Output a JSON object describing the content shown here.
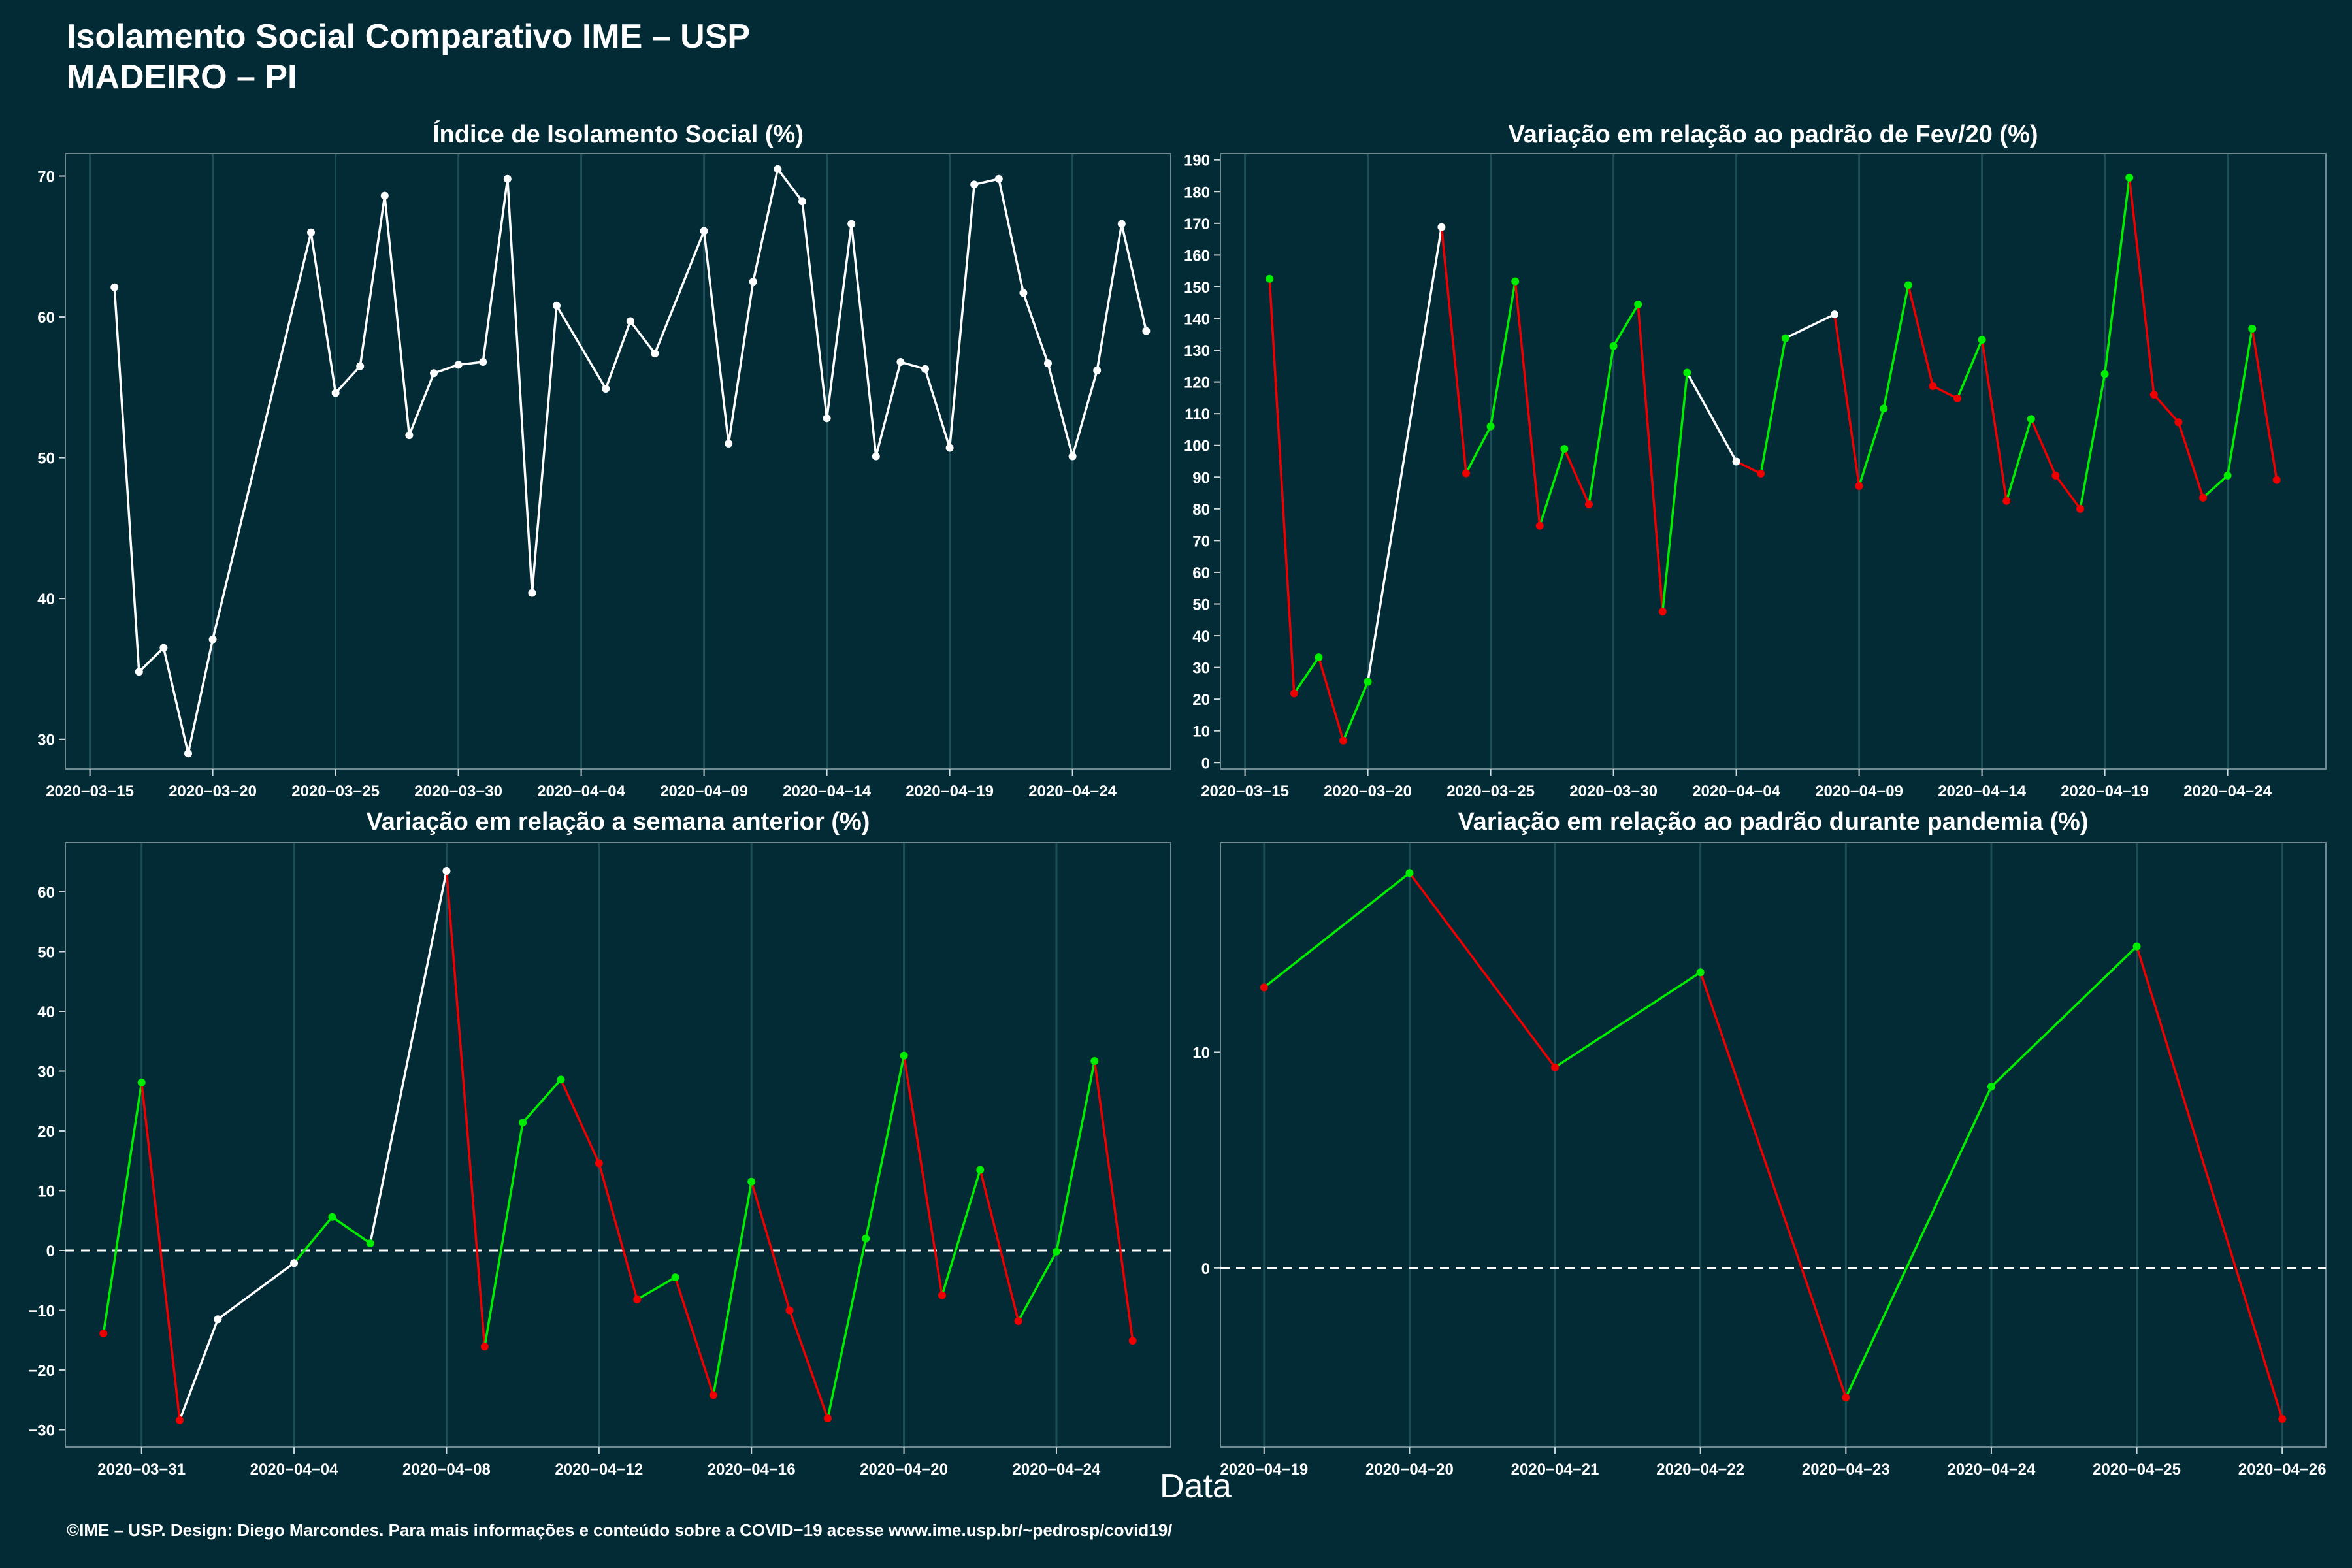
{
  "page": {
    "title_line1": "Isolamento Social Comparativo IME – USP",
    "title_line2": "MADEIRO – PI",
    "xlabel": "Data",
    "footer": "©IME – USP. Design: Diego Marcondes. Para mais informações e conteúdo sobre a COVID−19 acesse www.ime.usp.br/~pedrosp/covid19/"
  },
  "colors": {
    "background": "#022b36",
    "up": "#00ee00",
    "down": "#ee0000",
    "neutral": "#ffffff",
    "grid": "#1d4e57"
  },
  "chart_data": [
    {
      "type": "line",
      "title": "Índice de Isolamento Social (%)",
      "x": [
        "2020-03-16",
        "2020-03-17",
        "2020-03-18",
        "2020-03-19",
        "2020-03-20",
        "2020-03-24",
        "2020-03-25",
        "2020-03-26",
        "2020-03-27",
        "2020-03-28",
        "2020-03-29",
        "2020-03-30",
        "2020-03-31",
        "2020-04-01",
        "2020-04-02",
        "2020-04-03",
        "2020-04-05",
        "2020-04-06",
        "2020-04-07",
        "2020-04-09",
        "2020-04-10",
        "2020-04-11",
        "2020-04-12",
        "2020-04-13",
        "2020-04-14",
        "2020-04-15",
        "2020-04-16",
        "2020-04-17",
        "2020-04-18",
        "2020-04-19",
        "2020-04-20",
        "2020-04-21",
        "2020-04-22",
        "2020-04-23",
        "2020-04-24",
        "2020-04-25",
        "2020-04-26",
        "2020-04-27"
      ],
      "values": [
        62.1,
        34.8,
        36.5,
        29.0,
        37.1,
        66.0,
        54.6,
        56.5,
        68.6,
        51.6,
        56.0,
        56.6,
        56.8,
        69.8,
        40.4,
        60.8,
        54.9,
        59.7,
        57.4,
        66.1,
        51.0,
        62.5,
        70.5,
        68.2,
        52.8,
        66.6,
        50.1,
        56.8,
        56.3,
        50.7,
        69.4,
        69.8,
        61.7,
        56.7,
        50.1,
        56.2,
        66.6,
        59.0
      ],
      "yticks": [
        30,
        40,
        50,
        60,
        70
      ],
      "ylim": [
        27.9,
        71.6
      ],
      "xticks": [
        "2020−03−15",
        "2020−03−20",
        "2020−03−25",
        "2020−03−30",
        "2020−04−04",
        "2020−04−09",
        "2020−04−14",
        "2020−04−19",
        "2020−04−24"
      ],
      "xlim": [
        "2020-03-14",
        "2020-04-28"
      ],
      "segment_colors": [
        "neutral"
      ]
    },
    {
      "type": "line",
      "title": "Variação em relação ao padrão de Fev/20 (%)",
      "x": [
        "2020-03-16",
        "2020-03-17",
        "2020-03-18",
        "2020-03-19",
        "2020-03-20",
        "2020-03-23",
        "2020-03-24",
        "2020-03-25",
        "2020-03-26",
        "2020-03-27",
        "2020-03-28",
        "2020-03-29",
        "2020-03-30",
        "2020-03-31",
        "2020-04-01",
        "2020-04-02",
        "2020-04-04",
        "2020-04-05",
        "2020-04-06",
        "2020-04-08",
        "2020-04-09",
        "2020-04-10",
        "2020-04-11",
        "2020-04-12",
        "2020-04-13",
        "2020-04-14",
        "2020-04-15",
        "2020-04-16",
        "2020-04-17",
        "2020-04-18",
        "2020-04-19",
        "2020-04-20",
        "2020-04-21",
        "2020-04-22",
        "2020-04-23",
        "2020-04-24",
        "2020-04-25",
        "2020-04-26"
      ],
      "values": [
        152.5,
        21.8,
        33.2,
        6.9,
        25.5,
        168.8,
        91.2,
        106.0,
        151.7,
        74.7,
        98.9,
        81.4,
        131.3,
        144.4,
        47.6,
        122.9,
        94.9,
        91.1,
        133.8,
        141.3,
        87.2,
        111.6,
        150.5,
        118.7,
        114.8,
        133.3,
        82.5,
        108.3,
        90.5,
        80.0,
        122.5,
        184.4,
        116.0,
        107.3,
        83.5,
        90.5,
        136.8,
        89.1
      ],
      "yticks": [
        0,
        10,
        20,
        30,
        40,
        50,
        60,
        70,
        80,
        90,
        100,
        110,
        120,
        130,
        140,
        150,
        160,
        170,
        180,
        190
      ],
      "ylim": [
        -2,
        192
      ],
      "xticks": [
        "2020−03−15",
        "2020−03−20",
        "2020−03−25",
        "2020−03−30",
        "2020−04−04",
        "2020−04−09",
        "2020−04−14",
        "2020−04−19",
        "2020−04−24"
      ],
      "xlim": [
        "2020-03-14",
        "2020-04-28"
      ],
      "segment_colors": [
        "down",
        "up",
        "down",
        "up",
        "neutral",
        "down",
        "up",
        "up",
        "down",
        "up",
        "down",
        "up",
        "up",
        "down",
        "up",
        "neutral",
        "down",
        "up",
        "neutral",
        "down",
        "up",
        "up",
        "down",
        "down",
        "up",
        "down",
        "up",
        "down",
        "down",
        "up",
        "up",
        "down",
        "down",
        "down",
        "up",
        "up",
        "down"
      ]
    },
    {
      "type": "line",
      "title": "Variação em relação a semana anterior (%)",
      "x": [
        "2020-03-30",
        "2020-03-31",
        "2020-04-01",
        "2020-04-02",
        "2020-04-04",
        "2020-04-05",
        "2020-04-06",
        "2020-04-08",
        "2020-04-09",
        "2020-04-10",
        "2020-04-11",
        "2020-04-12",
        "2020-04-13",
        "2020-04-14",
        "2020-04-15",
        "2020-04-16",
        "2020-04-17",
        "2020-04-18",
        "2020-04-19",
        "2020-04-20",
        "2020-04-21",
        "2020-04-22",
        "2020-04-23",
        "2020-04-24",
        "2020-04-25",
        "2020-04-26"
      ],
      "values": [
        -13.9,
        28.1,
        -28.4,
        -11.5,
        -2.1,
        5.6,
        1.2,
        63.5,
        -16.1,
        21.4,
        28.6,
        14.6,
        -8.2,
        -4.5,
        -24.2,
        11.5,
        -10.0,
        -28.1,
        2.0,
        32.6,
        -7.5,
        13.5,
        -11.8,
        -0.2,
        31.7,
        -15.1
      ],
      "yticks": [
        -30,
        -20,
        -10,
        0,
        10,
        20,
        30,
        40,
        50,
        60
      ],
      "ylim": [
        -32.9,
        68.2
      ],
      "xticks": [
        "2020−03−31",
        "2020−04−04",
        "2020−04−08",
        "2020−04−12",
        "2020−04−16",
        "2020−04−20",
        "2020−04−24"
      ],
      "xlim": [
        "2020-03-29",
        "2020-04-27"
      ],
      "reference_line": 0,
      "segment_colors": [
        "up",
        "down",
        "neutral",
        "neutral",
        "up",
        "up",
        "neutral",
        "down",
        "up",
        "up",
        "down",
        "down",
        "up",
        "down",
        "up",
        "down",
        "down",
        "up",
        "up",
        "down",
        "up",
        "down",
        "up",
        "up",
        "down"
      ]
    },
    {
      "type": "line",
      "title": "Variação em relação ao padrão durante pandemia (%)",
      "x": [
        "2020-04-19",
        "2020-04-20",
        "2020-04-21",
        "2020-04-22",
        "2020-04-23",
        "2020-04-24",
        "2020-04-25",
        "2020-04-26"
      ],
      "values": [
        13.0,
        18.3,
        9.3,
        13.7,
        -6.0,
        8.4,
        14.9,
        -7.0
      ],
      "yticks": [
        0,
        10
      ],
      "ylim": [
        -8.3,
        19.7
      ],
      "xticks": [
        "2020−04−19",
        "2020−04−20",
        "2020−04−21",
        "2020−04−22",
        "2020−04−23",
        "2020−04−24",
        "2020−04−25",
        "2020−04−26"
      ],
      "xlim": [
        "2020-04-18.7",
        "2020-04-26.3"
      ],
      "reference_line": 0,
      "segment_colors": [
        "up",
        "down",
        "up",
        "down",
        "up",
        "up",
        "down"
      ]
    }
  ]
}
